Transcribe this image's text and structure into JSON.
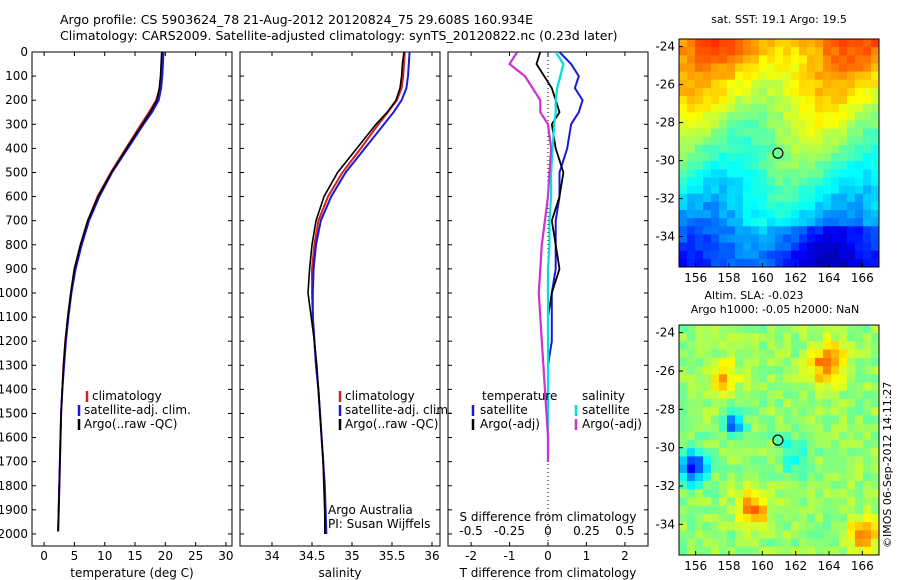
{
  "header": {
    "line1": "Argo profile: CS 5903624_78 21-Aug-2012 20120824_75 29.608S 160.934E",
    "line2": "Climatology: CARS2009. Satellite-adjusted climatology: synTS_20120822.nc (0.23d later)"
  },
  "depth_axis": {
    "ticks": [
      0,
      100,
      200,
      300,
      400,
      500,
      600,
      700,
      800,
      900,
      1000,
      1100,
      1200,
      1300,
      1400,
      1500,
      1600,
      1700,
      1800,
      1900,
      2000
    ],
    "range": [
      0,
      2050
    ]
  },
  "colors": {
    "climatology": "#d62020",
    "satellite": "#1a1ad6",
    "argo": "#000000",
    "salinity_satellite": "#00e0e0",
    "salinity_argo": "#d030d0"
  },
  "chart_data": [
    {
      "type": "line",
      "panel": "temperature",
      "xlabel": "temperature (deg C)",
      "xlim": [
        -2,
        31
      ],
      "xticks": [
        0,
        5,
        10,
        15,
        20,
        25,
        30
      ],
      "legend": [
        "climatology",
        "satellite-adj. clim.",
        "Argo(..raw -QC)"
      ],
      "depth": [
        0,
        50,
        100,
        150,
        200,
        250,
        300,
        400,
        500,
        600,
        700,
        800,
        900,
        1000,
        1100,
        1200,
        1300,
        1400,
        1500,
        1600,
        1700,
        1800,
        1900,
        1990
      ],
      "series": [
        {
          "name": "climatology",
          "values": [
            19.5,
            19.4,
            19.3,
            19.1,
            18.5,
            17.3,
            16.0,
            13.5,
            11.0,
            8.8,
            7.2,
            6.0,
            5.0,
            4.4,
            3.9,
            3.5,
            3.2,
            3.0,
            2.8,
            2.7,
            2.6,
            2.5,
            2.4,
            2.3
          ]
        },
        {
          "name": "satellite-adj. clim.",
          "values": [
            19.7,
            19.6,
            19.5,
            19.3,
            18.9,
            17.8,
            16.4,
            13.8,
            11.2,
            9.1,
            7.4,
            6.2,
            5.2,
            4.5,
            4.0,
            3.6,
            3.3,
            3.0,
            2.8,
            2.7,
            2.6,
            2.5,
            2.4,
            2.3
          ]
        },
        {
          "name": "Argo(..raw -QC)",
          "values": [
            19.4,
            19.3,
            19.2,
            19.0,
            18.6,
            17.5,
            16.2,
            13.6,
            11.1,
            8.9,
            7.2,
            6.0,
            5.0,
            4.4,
            3.9,
            3.5,
            3.2,
            3.0,
            2.8,
            2.7,
            2.6,
            2.5,
            2.4,
            2.3
          ]
        }
      ]
    },
    {
      "type": "line",
      "panel": "salinity",
      "xlabel": "salinity",
      "xlim": [
        33.6,
        36.1
      ],
      "xticks": [
        34,
        34.5,
        35,
        35.5,
        36
      ],
      "legend": [
        "climatology",
        "satellite-adj. clim.",
        "Argo(..raw -QC)"
      ],
      "annotation": [
        "Argo Australia",
        "PI: Susan Wijffels"
      ],
      "depth": [
        0,
        50,
        100,
        150,
        200,
        250,
        300,
        400,
        500,
        600,
        700,
        800,
        900,
        1000,
        1100,
        1200,
        1300,
        1400,
        1500,
        1600,
        1700,
        1800,
        1900,
        2000
      ],
      "series": [
        {
          "name": "climatology",
          "values": [
            35.66,
            35.65,
            35.64,
            35.62,
            35.56,
            35.45,
            35.33,
            35.11,
            34.88,
            34.7,
            34.58,
            34.53,
            34.5,
            34.5,
            34.51,
            34.53,
            34.55,
            34.58,
            34.6,
            34.62,
            34.64,
            34.65,
            34.66,
            34.67
          ]
        },
        {
          "name": "satellite-adj. clim.",
          "values": [
            35.72,
            35.71,
            35.7,
            35.68,
            35.62,
            35.52,
            35.4,
            35.16,
            34.92,
            34.74,
            34.61,
            34.55,
            34.52,
            34.51,
            34.51,
            34.53,
            34.55,
            34.58,
            34.6,
            34.62,
            34.64,
            34.66,
            34.67,
            34.68
          ]
        },
        {
          "name": "Argo(..raw -QC)",
          "values": [
            35.65,
            35.63,
            35.62,
            35.6,
            35.55,
            35.44,
            35.3,
            35.06,
            34.82,
            34.65,
            34.55,
            34.5,
            34.47,
            34.45,
            34.49,
            34.53,
            34.56,
            34.58,
            34.6,
            34.62,
            34.64,
            34.65,
            34.66,
            34.66
          ]
        }
      ]
    },
    {
      "type": "line",
      "panel": "difference",
      "xlabel_top": "S difference from climatology",
      "xlabel": "T difference from climatology",
      "t_xlim": [
        -2.6,
        2.6
      ],
      "t_xticks": [
        -2,
        -1,
        0,
        1,
        2
      ],
      "s_xticks_labels": [
        "-0.5",
        "-0.25",
        "0",
        "0.25",
        "0.5"
      ],
      "legend_temperature": [
        "temperature",
        "satellite",
        "Argo(-adj)"
      ],
      "legend_salinity": [
        "salinity",
        "satellite",
        "Argo(-adj)"
      ],
      "depth": [
        0,
        50,
        100,
        150,
        200,
        250,
        300,
        400,
        500,
        600,
        700,
        800,
        900,
        1000,
        1100,
        1200,
        1300,
        1400,
        1500,
        1600,
        1700
      ],
      "series": [
        {
          "name": "T satellite",
          "values": [
            0.3,
            0.6,
            0.8,
            0.7,
            0.9,
            0.8,
            0.6,
            0.5,
            0.3,
            0.3,
            0.2,
            0.2,
            0.2,
            0.1,
            0.1,
            0.1,
            0.0,
            0.0,
            0.0,
            0.0,
            0.0
          ]
        },
        {
          "name": "T Argo(-adj)",
          "values": [
            -0.2,
            -0.3,
            -0.1,
            0.1,
            0.2,
            0.3,
            0.1,
            0.2,
            0.4,
            0.3,
            0.1,
            0.2,
            0.3,
            0.1,
            0.0,
            0.0,
            0.0,
            0.0,
            0.0,
            0.0,
            0.0
          ]
        },
        {
          "name": "S satellite",
          "values": [
            0.05,
            0.1,
            0.08,
            0.06,
            0.05,
            0.05,
            0.04,
            0.03,
            0.02,
            0.02,
            0.01,
            0.01,
            0.0,
            0.0,
            0.0,
            0.0,
            0.0,
            0.0,
            0.0,
            0.0,
            0.0
          ]
        },
        {
          "name": "S Argo(-adj)",
          "values": [
            -0.2,
            -0.25,
            -0.15,
            -0.1,
            -0.05,
            -0.05,
            0.0,
            0.02,
            0.01,
            0.0,
            -0.02,
            -0.04,
            -0.05,
            -0.06,
            -0.05,
            -0.04,
            -0.03,
            -0.02,
            -0.01,
            0.0,
            0.0
          ]
        }
      ]
    },
    {
      "type": "heatmap",
      "panel": "SST map",
      "title": "sat. SST: 19.1  Argo: 19.5",
      "xticks": [
        156,
        158,
        160,
        162,
        164,
        166
      ],
      "yticks": [
        -24,
        -26,
        -28,
        -30,
        -32,
        -34
      ],
      "xlim": [
        155,
        167
      ],
      "ylim": [
        -35.6,
        -23.6
      ],
      "marker": {
        "lon": 160.934,
        "lat": -29.608
      }
    },
    {
      "type": "heatmap",
      "panel": "SLA map",
      "title_line1": "Altim. SLA: -0.023",
      "title_line2": "Argo h1000: -0.05  h2000: NaN",
      "xticks": [
        156,
        158,
        160,
        162,
        164,
        166
      ],
      "yticks": [
        -24,
        -26,
        -28,
        -30,
        -32,
        -34
      ],
      "xlim": [
        155,
        167
      ],
      "ylim": [
        -35.6,
        -23.6
      ],
      "marker": {
        "lon": 160.934,
        "lat": -29.608
      }
    }
  ],
  "credit": "©IMOS 06-Sep-2012 14:11:27"
}
